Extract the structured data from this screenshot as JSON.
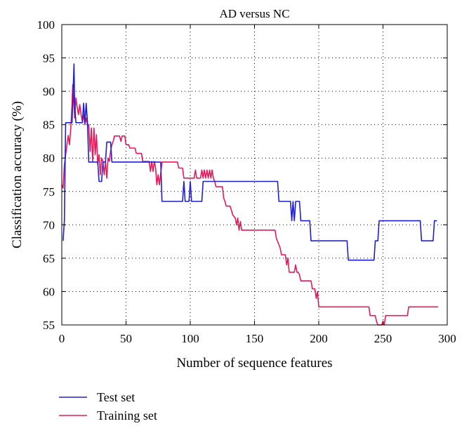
{
  "chart_data": {
    "type": "line",
    "title": "AD versus NC",
    "xlabel": "Number of sequence features",
    "ylabel": "Classification accuracy (%)",
    "xlim": [
      0,
      300
    ],
    "ylim": [
      55,
      100
    ],
    "xticks": [
      "0",
      "50",
      "100",
      "150",
      "200",
      "250",
      "300"
    ],
    "yticks": [
      "55",
      "60",
      "65",
      "70",
      "75",
      "80",
      "85",
      "90",
      "95",
      "100"
    ],
    "grid": true,
    "legend_position": "below",
    "series": [
      {
        "name": "Test set",
        "color": "#1f1fd6",
        "points": [
          [
            1,
            67.6
          ],
          [
            2,
            70.6
          ],
          [
            3,
            85.3
          ],
          [
            8,
            85.3
          ],
          [
            9,
            91.2
          ],
          [
            9.5,
            94.1
          ],
          [
            10,
            88.2
          ],
          [
            11,
            85.3
          ],
          [
            16,
            85.3
          ],
          [
            17,
            88.2
          ],
          [
            18,
            85.3
          ],
          [
            19,
            88.2
          ],
          [
            20,
            85.3
          ],
          [
            21,
            79.4
          ],
          [
            28,
            79.4
          ],
          [
            29,
            76.5
          ],
          [
            31,
            76.5
          ],
          [
            32,
            79.4
          ],
          [
            34,
            79.4
          ],
          [
            35,
            82.4
          ],
          [
            38,
            82.4
          ],
          [
            39,
            79.4
          ],
          [
            77,
            79.4
          ],
          [
            78,
            73.5
          ],
          [
            94,
            73.5
          ],
          [
            95,
            76.5
          ],
          [
            96,
            73.5
          ],
          [
            99,
            73.5
          ],
          [
            100,
            76.5
          ],
          [
            101,
            73.5
          ],
          [
            109,
            73.5
          ],
          [
            110,
            76.5
          ],
          [
            168,
            76.5
          ],
          [
            169,
            73.5
          ],
          [
            178,
            73.5
          ],
          [
            179,
            70.6
          ],
          [
            180,
            73.5
          ],
          [
            181,
            70.6
          ],
          [
            182,
            73.5
          ],
          [
            185,
            73.5
          ],
          [
            186,
            70.6
          ],
          [
            193,
            70.6
          ],
          [
            194,
            67.6
          ],
          [
            222,
            67.6
          ],
          [
            223,
            64.7
          ],
          [
            243,
            64.7
          ],
          [
            244,
            67.6
          ],
          [
            246,
            67.6
          ],
          [
            247,
            70.6
          ],
          [
            279,
            70.6
          ],
          [
            280,
            67.6
          ],
          [
            289,
            67.6
          ],
          [
            290,
            70.6
          ],
          [
            292,
            70.6
          ]
        ]
      },
      {
        "name": "Training set",
        "color": "#e8185a",
        "points": [
          [
            0,
            76.0
          ],
          [
            1,
            75.5
          ],
          [
            2,
            79.0
          ],
          [
            3,
            80.5
          ],
          [
            4,
            82.0
          ],
          [
            5,
            83.4
          ],
          [
            6,
            82.0
          ],
          [
            7,
            84.5
          ],
          [
            8,
            88.0
          ],
          [
            8.5,
            91.0
          ],
          [
            9,
            89.5
          ],
          [
            10,
            86.0
          ],
          [
            11,
            89.0
          ],
          [
            12,
            87.5
          ],
          [
            13,
            86.5
          ],
          [
            14,
            88.0
          ],
          [
            15,
            86.5
          ],
          [
            16,
            85.5
          ],
          [
            17,
            86.5
          ],
          [
            18,
            85.0
          ],
          [
            19,
            86.0
          ],
          [
            20,
            85.0
          ],
          [
            21,
            85.0
          ],
          [
            22,
            81.0
          ],
          [
            23,
            84.5
          ],
          [
            24,
            79.5
          ],
          [
            25,
            84.5
          ],
          [
            26,
            80.5
          ],
          [
            27,
            83.5
          ],
          [
            28,
            79.0
          ],
          [
            29,
            80.5
          ],
          [
            30,
            77.5
          ],
          [
            31,
            80.0
          ],
          [
            32,
            79.5
          ],
          [
            33,
            77.5
          ],
          [
            34,
            79.5
          ],
          [
            35,
            77.0
          ],
          [
            36,
            80.0
          ],
          [
            37,
            79.5
          ],
          [
            38,
            81.0
          ],
          [
            39,
            82.0
          ],
          [
            40,
            82.5
          ],
          [
            41,
            83.3
          ],
          [
            45,
            83.3
          ],
          [
            46,
            82.5
          ],
          [
            47,
            83.3
          ],
          [
            49,
            83.3
          ],
          [
            50,
            82.0
          ],
          [
            52,
            82.0
          ],
          [
            53,
            81.5
          ],
          [
            57,
            81.5
          ],
          [
            58,
            80.7
          ],
          [
            62,
            80.7
          ],
          [
            63,
            79.5
          ],
          [
            68,
            79.5
          ],
          [
            69,
            78.0
          ],
          [
            70,
            79.5
          ],
          [
            71,
            78.0
          ],
          [
            72,
            79.5
          ],
          [
            73,
            78.5
          ],
          [
            74,
            76.0
          ],
          [
            75,
            77.5
          ],
          [
            76,
            76.0
          ],
          [
            78,
            79.4
          ],
          [
            90,
            79.4
          ],
          [
            91,
            78.5
          ],
          [
            94,
            78.5
          ],
          [
            95,
            77.0
          ],
          [
            103,
            77.0
          ],
          [
            104,
            78.2
          ],
          [
            105,
            77.0
          ],
          [
            108,
            77.0
          ],
          [
            109,
            78.2
          ],
          [
            110,
            77.0
          ],
          [
            111,
            78.2
          ],
          [
            112,
            77.0
          ],
          [
            113,
            78.2
          ],
          [
            114,
            77.0
          ],
          [
            115,
            78.2
          ],
          [
            116,
            77.0
          ],
          [
            117,
            78.2
          ],
          [
            118,
            77.0
          ],
          [
            119,
            76.5
          ],
          [
            120,
            75.7
          ],
          [
            125,
            75.7
          ],
          [
            126,
            74.0
          ],
          [
            127,
            73.5
          ],
          [
            128,
            72.8
          ],
          [
            131,
            72.8
          ],
          [
            132,
            72.2
          ],
          [
            133,
            71.5
          ],
          [
            135,
            71.0
          ],
          [
            136,
            70.0
          ],
          [
            137,
            71.0
          ],
          [
            138,
            69.2
          ],
          [
            139,
            70.5
          ],
          [
            140,
            69.2
          ],
          [
            166,
            69.2
          ],
          [
            167,
            68.0
          ],
          [
            168,
            67.5
          ],
          [
            169,
            67.0
          ],
          [
            170,
            66.5
          ],
          [
            171,
            65.5
          ],
          [
            174,
            65.5
          ],
          [
            175,
            64.0
          ],
          [
            176,
            65.0
          ],
          [
            177,
            62.9
          ],
          [
            181,
            62.9
          ],
          [
            182,
            64.0
          ],
          [
            183,
            62.9
          ],
          [
            184,
            62.9
          ],
          [
            185,
            62.5
          ],
          [
            186,
            61.6
          ],
          [
            194,
            61.6
          ],
          [
            195,
            60.4
          ],
          [
            197,
            60.4
          ],
          [
            198,
            59.0
          ],
          [
            199,
            60.0
          ],
          [
            200,
            57.7
          ],
          [
            239,
            57.7
          ],
          [
            240,
            56.4
          ],
          [
            244,
            56.4
          ],
          [
            245,
            55.5
          ],
          [
            246,
            55.0
          ],
          [
            249,
            55.0
          ],
          [
            250,
            55.5
          ],
          [
            251,
            55.0
          ],
          [
            252,
            56.4
          ],
          [
            269,
            56.4
          ],
          [
            270,
            57.7
          ],
          [
            293,
            57.7
          ]
        ]
      }
    ]
  }
}
